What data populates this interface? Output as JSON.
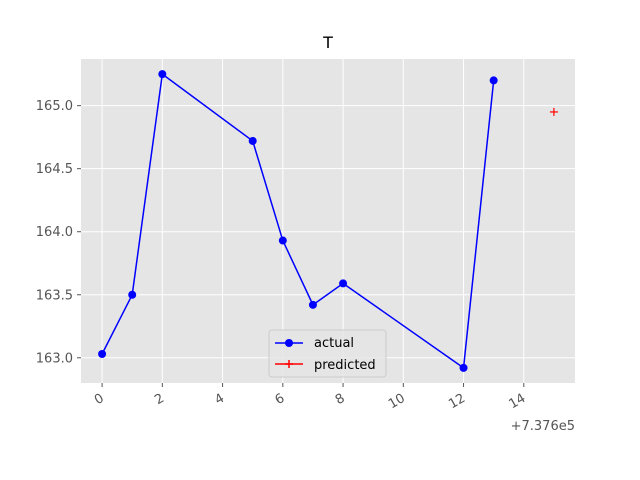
{
  "chart_data": {
    "type": "line",
    "title": "T",
    "xlabel": "",
    "ylabel": "",
    "x_offset_label": "+7.376e5",
    "xlim": [
      -0.7,
      15.7
    ],
    "ylim": [
      162.8,
      165.37
    ],
    "x_ticks": [
      0,
      2,
      4,
      6,
      8,
      10,
      12,
      14
    ],
    "x_tick_labels": [
      "0",
      "2",
      "4",
      "6",
      "8",
      "10",
      "12",
      "14"
    ],
    "y_ticks": [
      163.0,
      163.5,
      164.0,
      164.5,
      165.0
    ],
    "y_tick_labels": [
      "163.0",
      "163.5",
      "164.0",
      "164.5",
      "165.0"
    ],
    "grid": true,
    "legend_position": "lower-center",
    "series": [
      {
        "name": "actual",
        "color": "#0000ff",
        "marker": "circle",
        "line": true,
        "x": [
          0,
          1,
          2,
          5,
          6,
          7,
          8,
          12,
          13
        ],
        "y": [
          163.03,
          163.5,
          165.25,
          164.72,
          163.93,
          163.42,
          163.59,
          162.92,
          165.2
        ]
      },
      {
        "name": "predicted",
        "color": "#ff0000",
        "marker": "plus",
        "line": false,
        "x": [
          15
        ],
        "y": [
          164.95
        ]
      }
    ]
  }
}
